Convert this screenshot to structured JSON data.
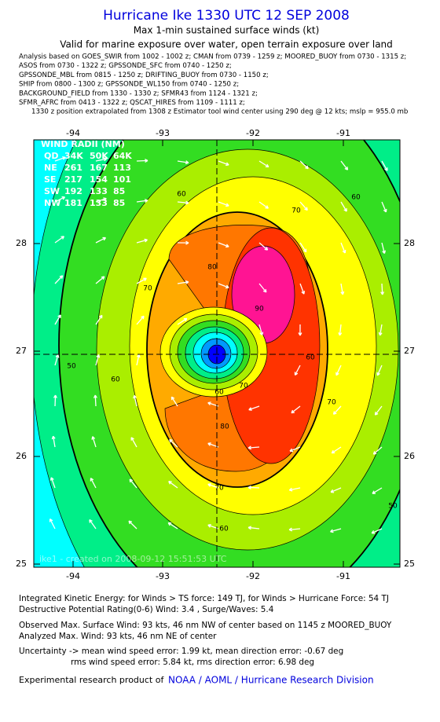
{
  "header": {
    "title": "Hurricane Ike   1330 UTC 12 SEP 2008",
    "subtitle": "Max 1-min sustained surface winds (kt)",
    "valid": "Valid for marine exposure over water, open terrain exposure over land"
  },
  "analysis": [
    "Analysis based on  GOES_SWIR from 1002 - 1002 z;  CMAN from 0739 - 1259 z;  MOORED_BUOY from 0730 - 1315 z;",
    "ASOS from 0730 - 1322 z;  GPSSONDE_SFC from 0740 - 1250 z;",
    "GPSSONDE_MBL from 0815 - 1250 z;  DRIFTING_BUOY from 0730 - 1150 z;",
    "SHIP from 0800 - 1300 z;  GPSSONDE_WL150 from 0740 - 1250 z;",
    "BACKGROUND_FIELD from 1330 - 1330 z;  SFMR43 from 1124 - 1321 z;",
    "SFMR_AFRC from 0413 - 1322 z;  QSCAT_HIRES from 1109 - 1111 z;",
    "1330 z position extrapolated from 1308 z Estimator tool wind center using 290 deg @ 12 kts; mslp = 955.0 mb"
  ],
  "map": {
    "lon_ticks": [
      "-94",
      "-93",
      "-92",
      "-91"
    ],
    "lat_ticks": [
      "28",
      "27",
      "26",
      "25"
    ],
    "wind_radii": {
      "title": "WIND RADII (NM)",
      "rows": [
        [
          "QD",
          "34K",
          "50K",
          "64K"
        ],
        [
          "NE",
          "261",
          "167",
          "113"
        ],
        [
          "SE",
          "217",
          "154",
          "101"
        ],
        [
          "SW",
          "192",
          "133",
          "85"
        ],
        [
          "NW",
          "181",
          "133",
          "85"
        ]
      ]
    },
    "contour_labels": [
      "60",
      "60",
      "70",
      "70",
      "80",
      "90",
      "80",
      "70",
      "60",
      "60",
      "50",
      "60",
      "70",
      "50",
      "60",
      "70"
    ],
    "watermark": "ike1 - created on 2008-09-12 15:51:53 UTC"
  },
  "footer": {
    "lines": [
      "Integrated Kinetic Energy:  for Winds > TS force: 149 TJ,  for Winds > Hurricane Force: 54 TJ",
      "Destructive Potential Rating(0-6)   Wind: 3.4 , Surge/Waves: 5.4",
      "Observed Max. Surface Wind: 93 kts, 46 nm NW of center based on 1145 z MOORED_BUOY",
      "Analyzed Max. Wind: 93 kts, 46 nm NE of center",
      "Uncertainty -> mean wind speed error: 1.99 kt,   mean direction error:  -0.67 deg",
      "rms wind speed error: 5.84 kt,   rms direction error: 6.98 deg"
    ],
    "credit": "Experimental research product of",
    "org": "NOAA / AOML / Hurricane Research Division"
  }
}
